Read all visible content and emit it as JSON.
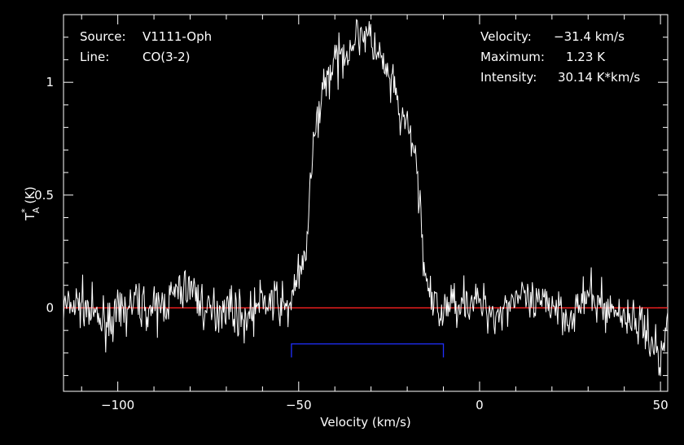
{
  "chart_data": {
    "type": "line",
    "xlabel": "Velocity (km/s)",
    "ylabel": "T",
    "ylabel_sup": "*",
    "ylabel_sub": "A",
    "ylabel_unit": "(K)",
    "xlim": [
      -115,
      52
    ],
    "ylim": [
      -0.37,
      1.3
    ],
    "x_ticks": [
      -100,
      -50,
      0,
      50
    ],
    "y_ticks": [
      0,
      0.5,
      1
    ],
    "x_tick_labels": [
      "−100",
      "−50",
      "0",
      "50"
    ],
    "y_tick_labels": [
      "0",
      "0.5",
      "1"
    ],
    "grid": false,
    "colors": {
      "background": "#000000",
      "frame": "#ffffff",
      "spectrum": "#ffffff",
      "baseline": "#ff2020",
      "window": "#2030ff"
    },
    "baseline": 0,
    "integration_window": [
      -52,
      -10
    ],
    "series": [
      {
        "x": [
          -115,
          -110,
          -105,
          -100,
          -95,
          -90,
          -85,
          -80,
          -75,
          -70,
          -65,
          -60,
          -55,
          -53,
          -51,
          -49,
          -48,
          -47,
          -46,
          -45,
          -44,
          -43,
          -42,
          -41,
          -40,
          -39,
          -38,
          -37,
          -36,
          -35,
          -34,
          -33,
          -32,
          -31,
          -30,
          -29,
          -28,
          -27,
          -26,
          -25,
          -24,
          -23,
          -22,
          -21,
          -20,
          -19,
          -18,
          -17,
          -16,
          -15,
          -14,
          -13,
          -12,
          -11,
          -10,
          -5,
          0,
          5,
          10,
          15,
          20,
          25,
          30,
          35,
          40,
          45,
          48,
          50,
          52
        ],
        "y": [
          0.0,
          0.02,
          -0.06,
          -0.04,
          0.03,
          -0.02,
          0.05,
          0.1,
          -0.03,
          0.02,
          -0.05,
          0.03,
          0.02,
          -0.02,
          0.12,
          0.15,
          0.25,
          0.48,
          0.7,
          0.8,
          0.92,
          1.0,
          1.02,
          1.05,
          1.1,
          1.08,
          1.12,
          1.15,
          1.15,
          1.18,
          1.2,
          1.22,
          1.23,
          1.2,
          1.18,
          1.15,
          1.12,
          1.08,
          1.05,
          1.0,
          0.98,
          0.92,
          0.85,
          0.82,
          0.8,
          0.75,
          0.7,
          0.55,
          0.35,
          0.15,
          0.05,
          0.0,
          0.02,
          -0.05,
          0.0,
          0.04,
          0.02,
          -0.03,
          0.06,
          0.0,
          0.03,
          -0.04,
          0.05,
          0.0,
          -0.03,
          -0.08,
          -0.15,
          -0.25,
          -0.05
        ]
      }
    ],
    "annotations": {
      "source_label": "Source:",
      "source_value": "V1111-Oph",
      "line_label": "Line:",
      "line_value": "CO(3-2)",
      "velocity_label": "Velocity:",
      "velocity_value": "−31.4 km/s",
      "maximum_label": "Maximum:",
      "maximum_value": "1.23 K",
      "intensity_label": "Intensity:",
      "intensity_value": "30.14 K*km/s"
    }
  }
}
